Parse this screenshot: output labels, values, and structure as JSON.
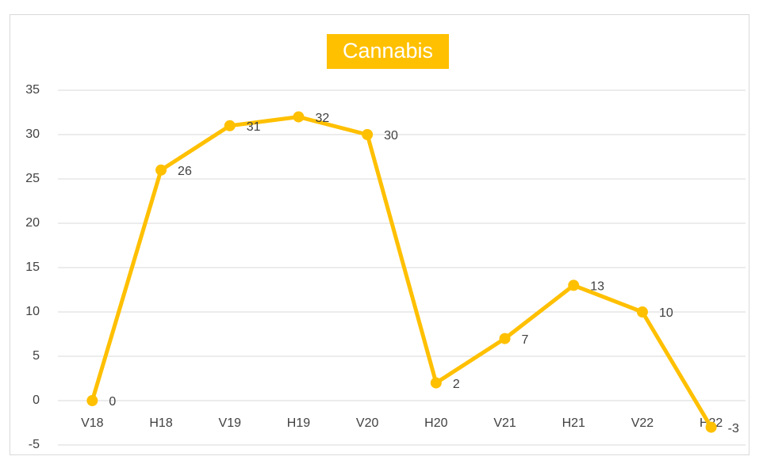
{
  "chart_data": {
    "type": "line",
    "title": "Cannabis",
    "categories": [
      "V18",
      "H18",
      "V19",
      "H19",
      "V20",
      "H20",
      "V21",
      "H21",
      "V22",
      "H22"
    ],
    "series": [
      {
        "name": "Cannabis",
        "color": "#FFC000",
        "values": [
          0,
          26,
          31,
          32,
          30,
          2,
          7,
          13,
          10,
          -3
        ]
      }
    ],
    "ylim": [
      -5,
      35
    ],
    "yticks": [
      -5,
      0,
      5,
      10,
      15,
      20,
      25,
      30,
      35
    ],
    "grid": true
  }
}
